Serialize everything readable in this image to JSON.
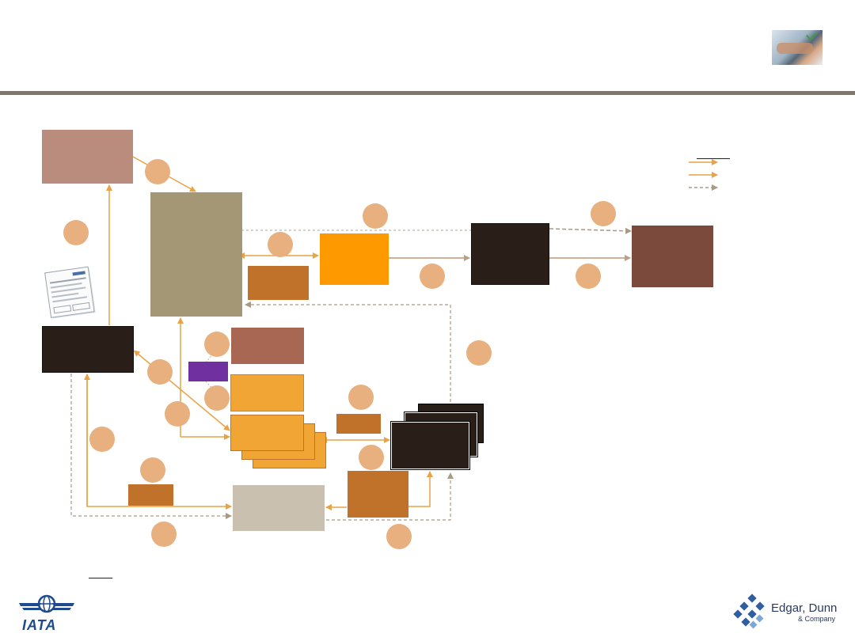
{
  "slide": {
    "header_rule_color": "#7f766c",
    "legend_title": "",
    "footnote_marker": ""
  },
  "logos": {
    "iata": {
      "text": "IATA",
      "icon": "globe-wings-icon",
      "color": "#1f4b8e"
    },
    "edgar_dunn": {
      "name": "Edgar, Dunn",
      "sub": "& Company",
      "icon": "diamond-cluster-icon",
      "color": "#2a3a5c"
    }
  },
  "header_image": {
    "icon": "hands-on-keyboard-photo"
  },
  "colors": {
    "rose_box": "#b98c7e",
    "taupe_box": "#a39775",
    "orange_box": "#ff9900",
    "copper_box": "#c0722a",
    "dark_box": "#2a1e19",
    "brown_box": "#7b4a3c",
    "terracotta_box": "#a86752",
    "purple_box": "#7030a0",
    "amber_box": "#f0a535",
    "beige_box": "#c9c0b0",
    "step_circle": "#e8b07e",
    "solid_arrow": "#e9a245",
    "dashed_arrow": "#a89a83"
  },
  "document_icon": "printed-form-icon"
}
